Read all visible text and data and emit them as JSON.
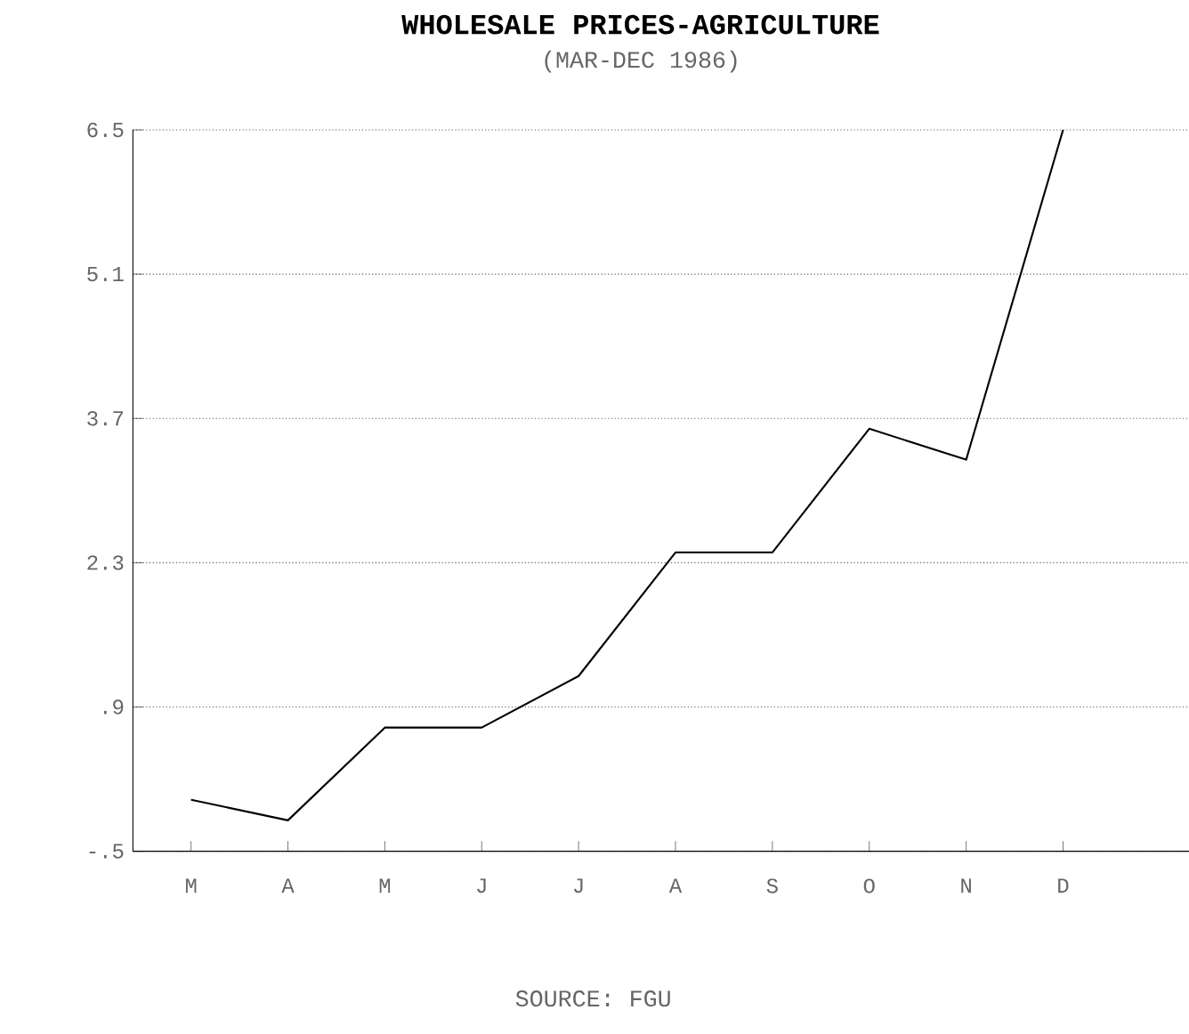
{
  "chart_data": {
    "type": "line",
    "title": "WHOLESALE PRICES-AGRICULTURE",
    "subtitle": "(MAR-DEC 1986)",
    "categories": [
      "M",
      "A",
      "M",
      "J",
      "J",
      "A",
      "S",
      "O",
      "N",
      "D"
    ],
    "values": [
      0.0,
      -0.2,
      0.7,
      0.7,
      1.2,
      2.4,
      2.4,
      3.6,
      3.3,
      6.5
    ],
    "color": "#000000",
    "ylim": [
      -0.5,
      6.5
    ],
    "yticks": [
      {
        "value": -0.5,
        "label": "-.5"
      },
      {
        "value": 0.9,
        "label": ".9"
      },
      2.3,
      3.7,
      5.1,
      6.5
    ],
    "grid": "y",
    "annotations": [
      "SOURCE: FGU"
    ]
  }
}
